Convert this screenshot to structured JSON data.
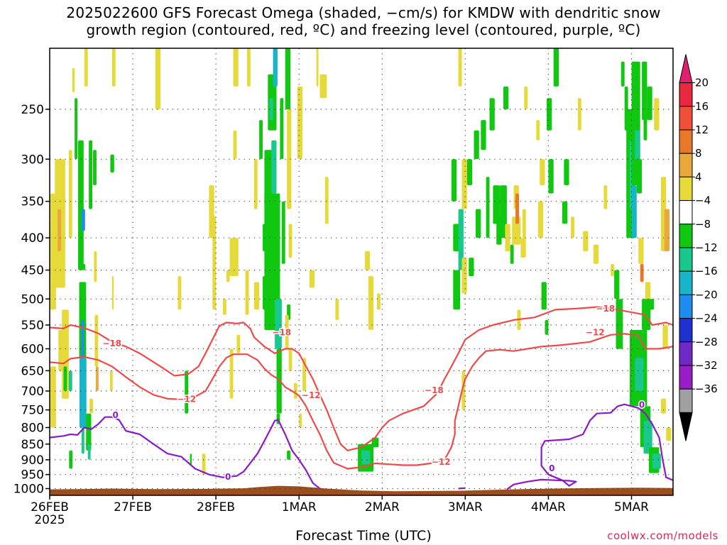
{
  "chart_data": {
    "type": "heatmap",
    "title_lines": [
      "2025022600 GFS Forecast Omega (shaded, −cm/s) for KMDW with dendritic snow",
      "growth region (contoured, red, ºC) and freezing level (contoured, purple, ºC)"
    ],
    "xlabel": "Forecast Time (UTC)",
    "ylabel": "",
    "x_ticks": [
      {
        "t": 0,
        "label": "26FEB"
      },
      {
        "t": 24,
        "label": "27FEB"
      },
      {
        "t": 48,
        "label": "28FEB"
      },
      {
        "t": 72,
        "label": "1MAR"
      },
      {
        "t": 96,
        "label": "2MAR"
      },
      {
        "t": 120,
        "label": "3MAR"
      },
      {
        "t": 144,
        "label": "4MAR"
      },
      {
        "t": 168,
        "label": "5MAR"
      }
    ],
    "x_sublabel": "2025",
    "xlim_hours": [
      0,
      180
    ],
    "y_ticks": [
      250,
      300,
      350,
      400,
      450,
      500,
      550,
      600,
      650,
      700,
      750,
      800,
      850,
      900,
      950,
      1000
    ],
    "ylim_hPa": [
      1025,
      200
    ],
    "grid": true,
    "colorbar": {
      "levels": [
        20,
        16,
        12,
        8,
        4,
        -4,
        -8,
        -12,
        -16,
        -20,
        -24,
        -28,
        -32,
        -36
      ],
      "colors": [
        "#e8283c",
        "#f05038",
        "#e87828",
        "#e8a83c",
        "#e6da3a",
        "#ffffff",
        "#10c810",
        "#18c88c",
        "#18b4c8",
        "#1e8cf0",
        "#1e32d2",
        "#7028c8",
        "#9a1ec8",
        "#a0a0a0"
      ],
      "top_arrow_color": "#e0206e",
      "bottom_arrow_color": "#000000"
    },
    "terrain_color": "#9a4f1c",
    "contours": {
      "dgz_color": "#ef4a4a",
      "freezing_color": "#8c19c8",
      "labels": [
        {
          "text": "−18",
          "t": 18,
          "p": 588,
          "type": "dgz"
        },
        {
          "text": "−12",
          "t": 39.5,
          "p": 721,
          "type": "dgz"
        },
        {
          "text": "−18",
          "t": 67,
          "p": 565,
          "type": "dgz"
        },
        {
          "text": "−12",
          "t": 75.5,
          "p": 711,
          "type": "dgz"
        },
        {
          "text": "−18",
          "t": 111,
          "p": 698,
          "type": "dgz"
        },
        {
          "text": "−12",
          "t": 113,
          "p": 907,
          "type": "dgz"
        },
        {
          "text": "−18",
          "t": 160.5,
          "p": 518,
          "type": "dgz"
        },
        {
          "text": "−12",
          "t": 157.5,
          "p": 565,
          "type": "dgz"
        },
        {
          "text": "0",
          "t": 19,
          "p": 765,
          "type": "frz"
        },
        {
          "text": "0",
          "t": 51.5,
          "p": 958,
          "type": "frz"
        },
        {
          "text": "0",
          "t": 145,
          "p": 929,
          "type": "frz"
        },
        {
          "text": "0",
          "t": 171,
          "p": 736,
          "type": "frz"
        }
      ]
    }
  },
  "credit": "coolwx.com/models"
}
